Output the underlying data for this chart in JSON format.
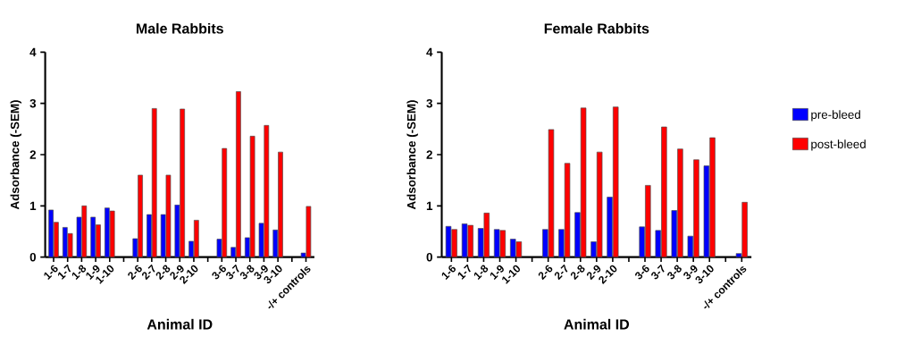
{
  "chart_data": [
    {
      "type": "bar",
      "title": "Male Rabbits",
      "xlabel": "Animal ID",
      "ylabel": "Adsorbance (-SEM)",
      "categories": [
        "1-6",
        "1-7",
        "1-8",
        "1-9",
        "1-10",
        null,
        "2-6",
        "2-7",
        "2-8",
        "2-9",
        "2-10",
        null,
        "3-6",
        "3-7",
        "3-8",
        "3-9",
        "3-10",
        null,
        "-/+ controls"
      ],
      "series": [
        {
          "color": "#0000ff",
          "values": [
            0.92,
            0.58,
            0.78,
            0.78,
            0.96,
            null,
            0.36,
            0.83,
            0.83,
            1.02,
            0.31,
            null,
            0.35,
            0.19,
            0.38,
            0.66,
            0.53,
            null,
            0.08
          ]
        },
        {
          "color": "#ff0000",
          "values": [
            0.68,
            0.46,
            1.0,
            0.63,
            0.9,
            null,
            1.6,
            2.9,
            1.6,
            2.89,
            0.72,
            null,
            2.12,
            3.23,
            2.36,
            2.57,
            2.05,
            null,
            0.99
          ]
        }
      ],
      "ylim": [
        0,
        4
      ],
      "yticks": [
        0,
        1,
        2,
        3,
        4
      ]
    },
    {
      "type": "bar",
      "title": "Female Rabbits",
      "xlabel": "Animal ID",
      "ylabel": "Adsorbance (-SEM)",
      "categories": [
        "1-6",
        "1-7",
        "1-8",
        "1-9",
        "1-10",
        null,
        "2-6",
        "2-7",
        "2-8",
        "2-9",
        "2-10",
        null,
        "3-6",
        "3-7",
        "3-8",
        "3-9",
        "3-10",
        null,
        "-/+ controls"
      ],
      "series": [
        {
          "name": "pre-bleed",
          "color": "#0000ff",
          "values": [
            0.6,
            0.65,
            0.56,
            0.54,
            0.35,
            null,
            0.54,
            0.54,
            0.87,
            0.3,
            1.17,
            null,
            0.59,
            0.52,
            0.91,
            0.41,
            1.78,
            null,
            0.07
          ]
        },
        {
          "name": "post-bleed",
          "color": "#ff0000",
          "values": [
            0.54,
            0.62,
            0.86,
            0.52,
            0.3,
            null,
            2.49,
            1.83,
            2.91,
            2.05,
            2.93,
            null,
            1.4,
            2.54,
            2.11,
            1.9,
            2.33,
            null,
            1.07
          ]
        }
      ],
      "ylim": [
        0,
        4
      ],
      "yticks": [
        0,
        1,
        2,
        3,
        4
      ],
      "legend": "right"
    }
  ]
}
